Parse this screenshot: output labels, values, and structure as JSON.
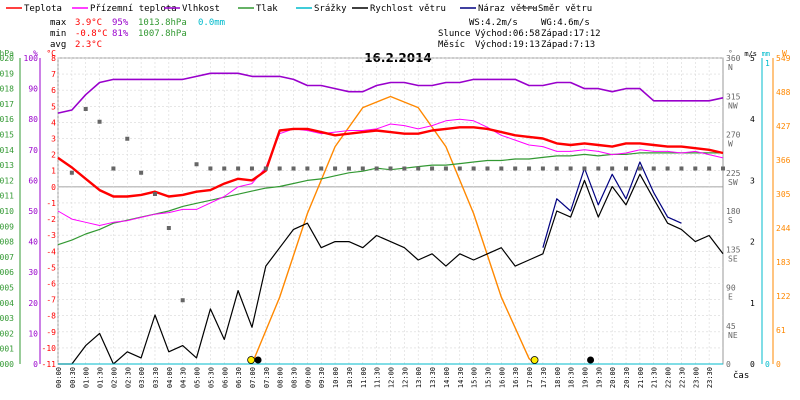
{
  "chart_data": {
    "type": "line",
    "title": "16.2.2014",
    "legend": [
      {
        "key": "teplota",
        "label": "Teplota",
        "color": "#ff0000"
      },
      {
        "key": "prizemni",
        "label": "Přízemní teplota",
        "color": "#ff00ff"
      },
      {
        "key": "vlhkost",
        "label": "Vlhkost",
        "color": "#9900cc"
      },
      {
        "key": "tlak",
        "label": "Tlak",
        "color": "#339933"
      },
      {
        "key": "srazky",
        "label": "Srážky",
        "color": "#00bbcc"
      },
      {
        "key": "rychlost",
        "label": "Rychlost větru",
        "color": "#000000"
      },
      {
        "key": "naraz",
        "label": "Náraz větru",
        "color": "#000080"
      },
      {
        "key": "smer",
        "label": "Směr větru",
        "color": "#666666"
      }
    ],
    "stats": {
      "max": {
        "label": "max",
        "teplota": "3.9°C",
        "vlhkost": "95%",
        "tlak": "1013.8hPa",
        "srazky": "0.0mm"
      },
      "min": {
        "label": "min",
        "teplota": "-0.8°C",
        "vlhkost": "81%",
        "tlak": "1007.8hPa"
      },
      "avg": {
        "label": "avg",
        "teplota": "2.3°C"
      }
    },
    "wind_stats": {
      "ws": "WS:4.2m/s",
      "wg": "WG:4.6m/s"
    },
    "sun": {
      "label": "Slunce",
      "rise": "Východ:06:58",
      "set": "Západ:17:12"
    },
    "moon": {
      "label": "Měsíc",
      "rise": "Východ:19:13",
      "set": "Západ:7:13"
    },
    "x_axis": {
      "label": "čas",
      "ticks": [
        "00:00",
        "00:30",
        "01:00",
        "01:30",
        "02:00",
        "02:30",
        "03:00",
        "03:30",
        "04:00",
        "04:30",
        "05:00",
        "05:30",
        "06:00",
        "06:30",
        "07:00",
        "07:30",
        "08:00",
        "08:30",
        "09:00",
        "09:30",
        "10:00",
        "10:30",
        "11:00",
        "11:30",
        "12:00",
        "12:30",
        "13:00",
        "13:30",
        "14:00",
        "14:30",
        "15:00",
        "15:30",
        "16:00",
        "16:30",
        "17:00",
        "17:30",
        "18:00",
        "18:30",
        "19:00",
        "19:30",
        "20:00",
        "20:30",
        "21:00",
        "21:30",
        "22:00",
        "22:30",
        "23:00",
        "23:30"
      ]
    },
    "y_axes": {
      "tlak": {
        "unit": "hPa",
        "ticks": [
          "1020",
          "1019",
          "1018",
          "1017",
          "1016",
          "1015",
          "1014",
          "1013",
          "1012",
          "1011",
          "1010",
          "1009",
          "1008",
          "1007",
          "1006",
          "1005",
          "1004",
          "1003",
          "1002",
          "1001",
          "1000"
        ],
        "range": [
          1000,
          1020
        ]
      },
      "vlhkost": {
        "unit": "%",
        "ticks": [
          "100",
          "90",
          "80",
          "70",
          "60",
          "50",
          "40",
          "30",
          "20",
          "10",
          "0"
        ],
        "range": [
          0,
          100
        ]
      },
      "teplota": {
        "unit": "°C",
        "ticks": [
          "8",
          "7",
          "6",
          "5",
          "4",
          "3",
          "2",
          "1",
          "0",
          "-1",
          "-2",
          "-3",
          "-4",
          "-5",
          "-6",
          "-7",
          "-8",
          "-9",
          "-10",
          "-11"
        ],
        "range": [
          -11,
          8
        ]
      },
      "smer": {
        "unit": "°",
        "ticks": [
          "360",
          "315",
          "270",
          "225",
          "180",
          "135",
          "90",
          "45",
          "0"
        ],
        "dirs": [
          "N",
          "NW",
          "W",
          "SW",
          "S",
          "SE",
          "E",
          "NE"
        ],
        "range": [
          0,
          360
        ]
      },
      "rychlost": {
        "unit": "m/s",
        "ticks": [
          "5",
          "4",
          "3",
          "2",
          "1",
          "0"
        ],
        "range": [
          0,
          5
        ]
      },
      "srazky": {
        "unit": "mm",
        "ticks": [
          "1",
          "0"
        ],
        "range": [
          0,
          1
        ]
      },
      "slunce": {
        "unit": "W",
        "ticks": [
          "549",
          "488",
          "427",
          "366",
          "305",
          "244",
          "183",
          "122",
          "61",
          "0"
        ],
        "range": [
          0,
          549
        ]
      }
    },
    "series": {
      "teplota": {
        "x": [
          0,
          0.5,
          1,
          1.5,
          2,
          2.5,
          3,
          3.5,
          4,
          4.5,
          5,
          5.5,
          6,
          6.5,
          7,
          7.5,
          8,
          8.5,
          9,
          9.5,
          10,
          10.5,
          11,
          11.5,
          12,
          12.5,
          13,
          13.5,
          14,
          14.5,
          15,
          15.5,
          16,
          16.5,
          17,
          17.5,
          18,
          18.5,
          19,
          19.5,
          20,
          20.5,
          21,
          21.5,
          22,
          22.5,
          23,
          23.5,
          24
        ],
        "y": [
          1.8,
          1.2,
          0.5,
          -0.2,
          -0.6,
          -0.6,
          -0.5,
          -0.3,
          -0.6,
          -0.5,
          -0.3,
          -0.2,
          0.2,
          0.5,
          0.4,
          1.0,
          3.5,
          3.6,
          3.6,
          3.4,
          3.2,
          3.3,
          3.4,
          3.5,
          3.4,
          3.3,
          3.3,
          3.5,
          3.6,
          3.7,
          3.7,
          3.6,
          3.4,
          3.2,
          3.1,
          3.0,
          2.7,
          2.6,
          2.7,
          2.6,
          2.5,
          2.7,
          2.7,
          2.6,
          2.5,
          2.5,
          2.4,
          2.3,
          2.1
        ]
      },
      "prizemni": {
        "x": [
          0,
          0.5,
          1,
          1.5,
          2,
          2.5,
          3,
          3.5,
          4,
          4.5,
          5,
          5.5,
          6,
          6.5,
          7,
          7.5,
          8,
          8.5,
          9,
          9.5,
          10,
          10.5,
          11,
          11.5,
          12,
          12.5,
          13,
          13.5,
          14,
          14.5,
          15,
          15.5,
          16,
          16.5,
          17,
          17.5,
          18,
          18.5,
          19,
          19.5,
          20,
          20.5,
          21,
          21.5,
          22,
          22.5,
          23,
          23.5,
          24
        ],
        "y": [
          -1.5,
          -2.0,
          -2.2,
          -2.4,
          -2.2,
          -2.1,
          -1.9,
          -1.7,
          -1.6,
          -1.4,
          -1.4,
          -1.0,
          -0.6,
          0.0,
          0.2,
          1.2,
          3.3,
          3.6,
          3.5,
          3.3,
          3.4,
          3.5,
          3.5,
          3.6,
          3.9,
          3.8,
          3.6,
          3.8,
          4.1,
          4.2,
          4.1,
          3.7,
          3.2,
          2.9,
          2.6,
          2.5,
          2.2,
          2.2,
          2.3,
          2.2,
          2.0,
          2.1,
          2.3,
          2.2,
          2.2,
          2.1,
          2.2,
          2.0,
          1.8
        ]
      },
      "vlhkost": {
        "x": [
          0,
          0.5,
          1,
          1.5,
          2,
          2.5,
          3,
          3.5,
          4,
          4.5,
          5,
          5.5,
          6,
          6.5,
          7,
          7.5,
          8,
          8.5,
          9,
          9.5,
          10,
          10.5,
          11,
          11.5,
          12,
          12.5,
          13,
          13.5,
          14,
          14.5,
          15,
          15.5,
          16,
          16.5,
          17,
          17.5,
          18,
          18.5,
          19,
          19.5,
          20,
          20.5,
          21,
          21.5,
          22,
          22.5,
          23,
          23.5,
          24
        ],
        "y": [
          82,
          83,
          88,
          92,
          93,
          93,
          93,
          93,
          93,
          93,
          94,
          95,
          95,
          95,
          94,
          94,
          94,
          93,
          91,
          91,
          90,
          89,
          89,
          91,
          92,
          92,
          91,
          91,
          92,
          92,
          93,
          93,
          93,
          93,
          91,
          91,
          92,
          92,
          90,
          90,
          89,
          90,
          90,
          86,
          86,
          86,
          86,
          86,
          87
        ]
      },
      "tlak": {
        "x": [
          0,
          0.5,
          1,
          1.5,
          2,
          2.5,
          3,
          3.5,
          4,
          4.5,
          5,
          5.5,
          6,
          6.5,
          7,
          7.5,
          8,
          8.5,
          9,
          9.5,
          10,
          10.5,
          11,
          11.5,
          12,
          12.5,
          13,
          13.5,
          14,
          14.5,
          15,
          15.5,
          16,
          16.5,
          17,
          17.5,
          18,
          18.5,
          19,
          19.5,
          20,
          20.5,
          21,
          21.5,
          22,
          22.5,
          23,
          23.5,
          24
        ],
        "y": [
          1007.8,
          1008.1,
          1008.5,
          1008.8,
          1009.2,
          1009.4,
          1009.6,
          1009.8,
          1010.0,
          1010.3,
          1010.5,
          1010.7,
          1010.9,
          1011.1,
          1011.3,
          1011.5,
          1011.6,
          1011.8,
          1012.0,
          1012.1,
          1012.3,
          1012.5,
          1012.6,
          1012.8,
          1012.7,
          1012.8,
          1012.9,
          1013.0,
          1013.0,
          1013.1,
          1013.2,
          1013.3,
          1013.3,
          1013.4,
          1013.4,
          1013.5,
          1013.6,
          1013.6,
          1013.7,
          1013.6,
          1013.7,
          1013.7,
          1013.8,
          1013.8,
          1013.8,
          1013.8,
          1013.8,
          1013.8,
          1013.8
        ]
      },
      "rychlost": {
        "x": [
          0,
          0.5,
          1,
          1.5,
          2,
          2.5,
          3,
          3.5,
          4,
          4.5,
          5,
          5.5,
          6,
          6.5,
          7,
          7.5,
          8,
          8.5,
          9,
          9.5,
          10,
          10.5,
          11,
          11.5,
          12,
          12.5,
          13,
          13.5,
          14,
          14.5,
          15,
          15.5,
          16,
          16.5,
          17,
          17.5,
          18,
          18.5,
          19,
          19.5,
          20,
          20.5,
          21,
          21.5,
          22,
          22.5,
          23,
          23.5,
          24
        ],
        "y": [
          0,
          0,
          0.3,
          0.5,
          0,
          0.2,
          0.1,
          0.8,
          0.2,
          0.3,
          0.1,
          0.9,
          0.4,
          1.2,
          0.6,
          1.6,
          1.9,
          2.2,
          2.3,
          1.9,
          2.0,
          2.0,
          1.9,
          2.1,
          2.0,
          1.9,
          1.7,
          1.8,
          1.6,
          1.8,
          1.7,
          1.8,
          1.9,
          1.6,
          1.7,
          1.8,
          2.5,
          2.4,
          3.0,
          2.4,
          2.9,
          2.6,
          3.1,
          2.7,
          2.3,
          2.2,
          2.0,
          2.1,
          1.8
        ]
      },
      "naraz": {
        "x": [
          17.5,
          18,
          18.5,
          19,
          19.5,
          20,
          20.5,
          21,
          21.5,
          22,
          22.5
        ],
        "y": [
          1.9,
          2.7,
          2.5,
          3.2,
          2.6,
          3.1,
          2.7,
          3.3,
          2.8,
          2.4,
          2.3
        ]
      },
      "smer": {
        "x": [
          0.5,
          1,
          1.5,
          2,
          2.5,
          3,
          3.5,
          4,
          4.5,
          5,
          5.5,
          6,
          6.5,
          7,
          7.5,
          8,
          8.5,
          9,
          9.5,
          10,
          10.5,
          11,
          11.5,
          12,
          12.5,
          13,
          13.5,
          14,
          14.5,
          15,
          15.5,
          16,
          16.5,
          17,
          17.5,
          18,
          18.5,
          19,
          19.5,
          20,
          20.5,
          21,
          21.5,
          22,
          22.5,
          23,
          23.5,
          24
        ],
        "y": [
          225,
          300,
          285,
          230,
          265,
          225,
          200,
          160,
          75,
          235,
          230,
          230,
          230,
          230,
          230,
          230,
          230,
          230,
          230,
          230,
          230,
          230,
          230,
          230,
          230,
          230,
          230,
          230,
          230,
          230,
          230,
          230,
          230,
          230,
          230,
          230,
          230,
          230,
          230,
          230,
          230,
          230,
          230,
          230,
          230,
          230,
          230,
          230
        ]
      },
      "slunce": {
        "x": [
          7.0,
          8,
          9,
          10,
          11,
          12,
          13,
          14,
          15,
          16,
          17,
          17.2
        ],
        "y": [
          0,
          120,
          270,
          390,
          460,
          480,
          460,
          390,
          270,
          120,
          10,
          0
        ]
      },
      "srazky": {
        "x": [
          0,
          24
        ],
        "y": [
          0,
          0
        ]
      }
    }
  }
}
